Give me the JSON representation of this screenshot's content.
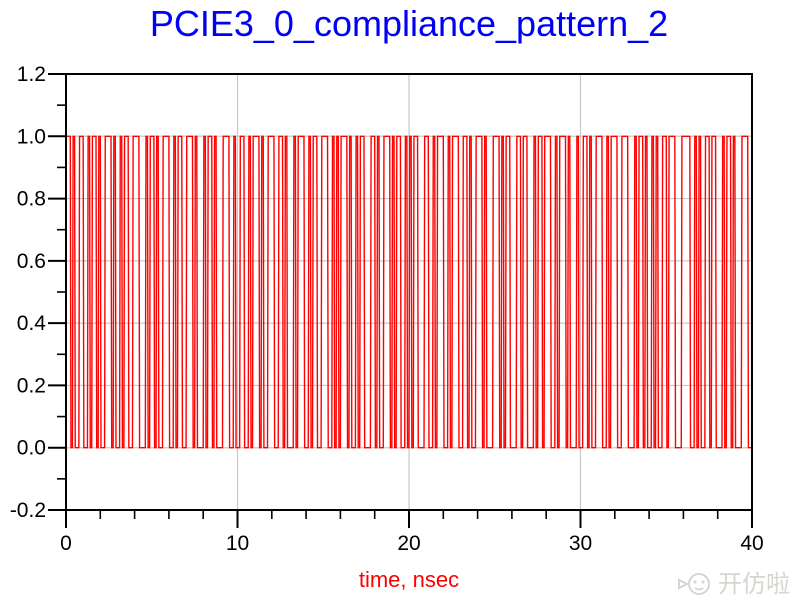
{
  "window": {
    "background": "#ffffff"
  },
  "title": {
    "text": "PCIE3_0_compliance_pattern_2",
    "color": "#0000f5"
  },
  "watermark": {
    "text": "开仿啦",
    "icon": "fish-cat-logo",
    "color": "#d6d6d0"
  },
  "colors": {
    "trace": "#ff0000",
    "axis": "#000000",
    "grid": "#c8c8c8",
    "tick_label": "#000000",
    "x_axis_title": "#ff0000",
    "background": "#ffffff"
  },
  "chart_data": {
    "type": "line",
    "subtype": "digital-waveform",
    "title": "PCIE3_0_compliance_pattern_2",
    "xlabel": "time, nsec",
    "ylabel": "",
    "xlim": [
      0,
      40
    ],
    "ylim": [
      -0.2,
      1.2
    ],
    "x_major_ticks": [
      0,
      10,
      20,
      30,
      40
    ],
    "x_tick_labels": [
      "0",
      "10",
      "20",
      "30",
      "40"
    ],
    "x_minor_tick_step": 2,
    "y_major_ticks": [
      1.2,
      1.0,
      0.8,
      0.6,
      0.4,
      0.2,
      0.0,
      -0.2
    ],
    "y_tick_labels": [
      "1.2",
      "1.0",
      "0.8",
      "0.6",
      "0.4",
      "0.2",
      "0.0",
      "-0.2"
    ],
    "y_minor_tick_step": 0.1,
    "grid_major_horizontal": true,
    "grid_major_vertical": true,
    "grid_color": "#c8c8c8",
    "legend": "none",
    "series": [
      {
        "name": "PCIE3_0_compliance_pattern_2",
        "color": "#ff0000",
        "low_level": 0.0,
        "high_level": 1.0,
        "unit_interval_ns": 0.125,
        "rise_time_ns": 0.04,
        "bit_rows": [
          "1101001100101101",
          "0011101001011001",
          "1100010110100111",
          "0010110011101000",
          "1011010001110010",
          "0110010111010011",
          "1001101000101110",
          "0101100111001010",
          "1110100101100011",
          "0100111010110010",
          "1011000110010111",
          "0010111001101001",
          "1101000111010110",
          "0011011000101101",
          "1100101110100010",
          "0110100111001011",
          "1001110001011010",
          "0101001101110001",
          "1110010100110110",
          "0010110100011100"
        ]
      }
    ]
  }
}
